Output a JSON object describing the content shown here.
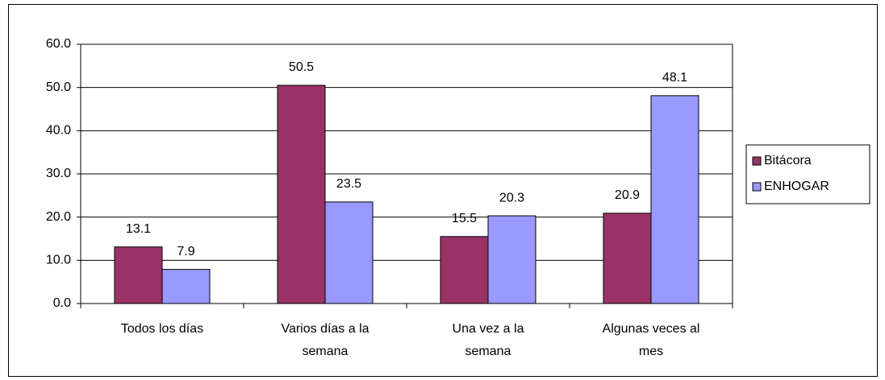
{
  "chart_data": {
    "type": "bar",
    "categories": [
      "Todos los días",
      "Varios días a la semana",
      "Una vez a la semana",
      "Algunas veces al mes"
    ],
    "series": [
      {
        "name": "Bitácora",
        "color": "#993366",
        "values": [
          13.1,
          50.5,
          15.5,
          20.9
        ]
      },
      {
        "name": "ENHOGAR",
        "color": "#9999ff",
        "values": [
          7.9,
          23.5,
          20.3,
          48.1
        ]
      }
    ],
    "ylim": [
      0,
      60
    ],
    "yticks": [
      {
        "value": 0,
        "label": "0.0"
      },
      {
        "value": 10,
        "label": "10.0"
      },
      {
        "value": 20,
        "label": "20.0"
      },
      {
        "value": 30,
        "label": "30.0"
      },
      {
        "value": 40,
        "label": "40.0"
      },
      {
        "value": 50,
        "label": "50.0"
      },
      {
        "value": 60,
        "label": "60.0"
      }
    ],
    "grid": true,
    "legend": "right"
  }
}
